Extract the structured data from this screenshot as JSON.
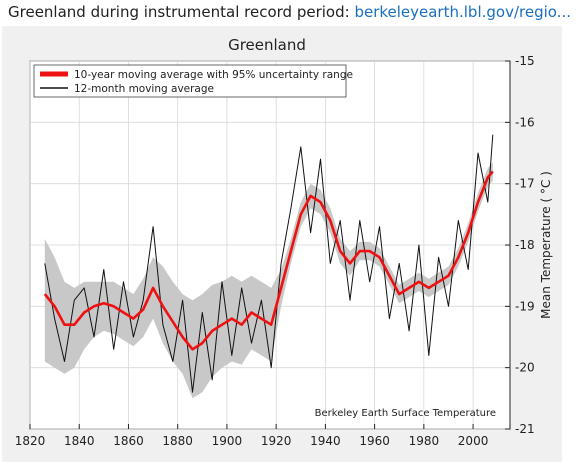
{
  "caption": {
    "prefix": "Greenland during instrumental record period: ",
    "link": "berkeleyearth.lbl.gov/regio..."
  },
  "colors": {
    "smooth": "#ee1111",
    "annual": "#111111",
    "band": "#c8c8c8",
    "background": "#f0f0f0",
    "link": "#1a6fc1"
  },
  "chart_data": {
    "type": "line",
    "title": "Greenland",
    "xlabel": "",
    "ylabel": "Mean Temperature ( °C )",
    "y_axis_side": "right",
    "y_inverted": true,
    "xlim": [
      1820,
      2015
    ],
    "ylim": [
      -15,
      -21
    ],
    "xticks": [
      1820,
      1840,
      1860,
      1880,
      1900,
      1920,
      1940,
      1960,
      1980,
      2000
    ],
    "yticks": [
      -15,
      -16,
      -17,
      -18,
      -19,
      -20,
      -21
    ],
    "grid": true,
    "legend_position": "top-left",
    "annotation": "Berkeley Earth Surface Temperature",
    "series": [
      {
        "name": "10-year moving average with 95% uncertainty range",
        "x": [
          1826,
          1830,
          1834,
          1838,
          1842,
          1846,
          1850,
          1854,
          1858,
          1862,
          1866,
          1870,
          1874,
          1878,
          1882,
          1886,
          1890,
          1894,
          1898,
          1902,
          1906,
          1910,
          1914,
          1918,
          1922,
          1926,
          1930,
          1934,
          1938,
          1942,
          1946,
          1950,
          1954,
          1958,
          1962,
          1966,
          1970,
          1974,
          1978,
          1982,
          1986,
          1990,
          1994,
          1998,
          2002,
          2006,
          2008
        ],
        "y": [
          -18.8,
          -19.0,
          -19.3,
          -19.3,
          -19.1,
          -19.0,
          -18.95,
          -19.0,
          -19.1,
          -19.2,
          -19.05,
          -18.7,
          -19.0,
          -19.25,
          -19.5,
          -19.7,
          -19.6,
          -19.4,
          -19.3,
          -19.2,
          -19.3,
          -19.1,
          -19.2,
          -19.3,
          -18.7,
          -18.1,
          -17.5,
          -17.2,
          -17.3,
          -17.6,
          -18.1,
          -18.3,
          -18.1,
          -18.1,
          -18.2,
          -18.5,
          -18.8,
          -18.7,
          -18.6,
          -18.7,
          -18.6,
          -18.5,
          -18.2,
          -17.8,
          -17.3,
          -16.9,
          -16.8
        ]
      },
      {
        "name": "12-month moving average",
        "x": [
          1826,
          1830,
          1834,
          1838,
          1842,
          1846,
          1850,
          1854,
          1858,
          1862,
          1866,
          1870,
          1874,
          1878,
          1882,
          1886,
          1890,
          1894,
          1898,
          1902,
          1906,
          1910,
          1914,
          1918,
          1922,
          1926,
          1930,
          1934,
          1938,
          1942,
          1946,
          1950,
          1954,
          1958,
          1962,
          1966,
          1970,
          1974,
          1978,
          1982,
          1986,
          1990,
          1994,
          1998,
          2002,
          2006,
          2008
        ],
        "y": [
          -18.3,
          -19.2,
          -19.9,
          -18.9,
          -18.7,
          -19.5,
          -18.4,
          -19.7,
          -18.6,
          -19.5,
          -18.9,
          -17.7,
          -19.3,
          -19.9,
          -18.9,
          -20.4,
          -19.1,
          -20.2,
          -18.6,
          -19.8,
          -18.7,
          -19.6,
          -18.9,
          -20.0,
          -18.3,
          -17.4,
          -16.4,
          -17.8,
          -16.6,
          -18.3,
          -17.6,
          -18.9,
          -17.6,
          -18.6,
          -17.7,
          -19.2,
          -18.3,
          -19.4,
          -18.0,
          -19.8,
          -18.2,
          -19.0,
          -17.6,
          -18.4,
          -16.5,
          -17.3,
          -16.2
        ]
      }
    ],
    "uncertainty_band": {
      "x": [
        1826,
        1830,
        1834,
        1838,
        1842,
        1846,
        1850,
        1854,
        1858,
        1862,
        1866,
        1870,
        1874,
        1878,
        1882,
        1886,
        1890,
        1894,
        1898,
        1902,
        1906,
        1910,
        1914,
        1918,
        1922,
        1926,
        1930,
        1934,
        1938,
        1942,
        1946,
        1950,
        1954,
        1958,
        1962,
        1966,
        1970,
        1974,
        1978,
        1982,
        1986,
        1990,
        1994,
        1998,
        2002,
        2006,
        2008
      ],
      "upper": [
        -17.9,
        -18.2,
        -18.6,
        -18.7,
        -18.6,
        -18.6,
        -18.6,
        -18.6,
        -18.7,
        -18.8,
        -18.55,
        -18.2,
        -18.35,
        -18.6,
        -18.8,
        -18.9,
        -18.8,
        -18.65,
        -18.6,
        -18.5,
        -18.6,
        -18.5,
        -18.6,
        -18.7,
        -18.4,
        -17.9,
        -17.3,
        -17.0,
        -17.1,
        -17.4,
        -17.9,
        -18.1,
        -17.95,
        -17.95,
        -18.05,
        -18.35,
        -18.65,
        -18.55,
        -18.45,
        -18.55,
        -18.45,
        -18.35,
        -18.05,
        -17.65,
        -17.15,
        -16.75,
        -16.65
      ],
      "lower": [
        -19.9,
        -20.0,
        -20.1,
        -20.0,
        -19.7,
        -19.5,
        -19.4,
        -19.45,
        -19.55,
        -19.65,
        -19.5,
        -19.2,
        -19.6,
        -19.9,
        -20.1,
        -20.5,
        -20.4,
        -20.15,
        -20.0,
        -19.9,
        -19.95,
        -19.7,
        -19.8,
        -19.9,
        -19.0,
        -18.3,
        -17.7,
        -17.4,
        -17.5,
        -17.8,
        -18.3,
        -18.5,
        -18.25,
        -18.25,
        -18.35,
        -18.65,
        -18.95,
        -18.85,
        -18.75,
        -18.85,
        -18.75,
        -18.65,
        -18.35,
        -17.95,
        -17.45,
        -17.05,
        -16.95
      ]
    }
  }
}
